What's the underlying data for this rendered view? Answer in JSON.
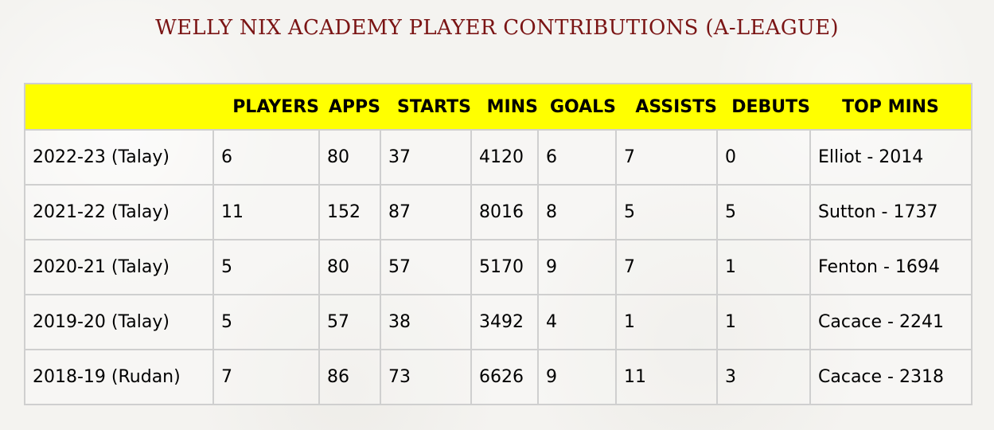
{
  "title": "WELLY NIX ACADEMY PLAYER CONTRIBUTIONS (A-LEAGUE)",
  "table": {
    "headers": [
      "",
      "PLAYERS",
      "APPS",
      "STARTS",
      "MINS",
      "GOALS",
      "ASSISTS",
      "DEBUTS",
      "TOP MINS"
    ],
    "rows": [
      [
        "2022-23 (Talay)",
        "6",
        "80",
        "37",
        "4120",
        "6",
        "7",
        "0",
        "Elliot - 2014"
      ],
      [
        "2021-22 (Talay)",
        "11",
        "152",
        "87",
        "8016",
        "8",
        "5",
        "5",
        "Sutton - 1737"
      ],
      [
        "2020-21 (Talay)",
        "5",
        "80",
        "57",
        "5170",
        "9",
        "7",
        "1",
        "Fenton - 1694"
      ],
      [
        "2019-20 (Talay)",
        "5",
        "57",
        "38",
        "3492",
        "4",
        "1",
        "1",
        "Cacace - 2241"
      ],
      [
        "2018-19 (Rudan)",
        "7",
        "86",
        "73",
        "6626",
        "9",
        "11",
        "3",
        "Cacace - 2318"
      ]
    ]
  },
  "colors": {
    "title": "#7a1414",
    "header_bg": "#ffff00",
    "border": "#cfcfcf",
    "background": "#f4f3f0"
  }
}
